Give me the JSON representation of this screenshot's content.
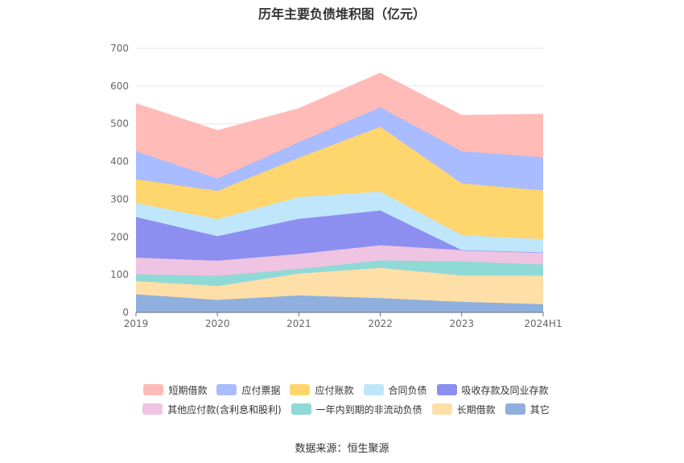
{
  "title": "历年主要负债堆积图（亿元）",
  "source": "数据来源：恒生聚源",
  "chart_data": {
    "type": "area",
    "stacked": true,
    "title": "历年主要负债堆积图（亿元）",
    "x": [
      "2019",
      "2020",
      "2021",
      "2022",
      "2023",
      "2024H1"
    ],
    "ylim": [
      0,
      700
    ],
    "yticks": [
      0,
      100,
      200,
      300,
      400,
      500,
      600,
      700
    ],
    "grid": true,
    "legend_position": "bottom",
    "series": [
      {
        "name": "其它",
        "color": "#8fb0de",
        "values": [
          48,
          33,
          45,
          38,
          28,
          22
        ]
      },
      {
        "name": "长期借款",
        "color": "#ffdfa8",
        "values": [
          35,
          37,
          58,
          80,
          70,
          75
        ]
      },
      {
        "name": "一年内到期的非流动负债",
        "color": "#8fd9d6",
        "values": [
          18,
          27,
          12,
          20,
          37,
          30
        ]
      },
      {
        "name": "其他应付款(含利息和股利)",
        "color": "#efc4e2",
        "values": [
          44,
          40,
          40,
          40,
          30,
          32
        ]
      },
      {
        "name": "吸收存款及同业存款",
        "color": "#8c8ff0",
        "values": [
          108,
          65,
          93,
          92,
          0,
          0
        ]
      },
      {
        "name": "合同负债",
        "color": "#bfe6fb",
        "values": [
          37,
          45,
          58,
          50,
          40,
          35
        ]
      },
      {
        "name": "应付账款",
        "color": "#ffd56e",
        "values": [
          63,
          75,
          104,
          172,
          137,
          129
        ]
      },
      {
        "name": "应付票据",
        "color": "#a9bcff",
        "values": [
          74,
          33,
          41,
          52,
          85,
          88
        ]
      },
      {
        "name": "短期借款",
        "color": "#ffbbb7",
        "values": [
          126,
          127,
          89,
          90,
          95,
          114
        ]
      }
    ],
    "legend_rows": [
      [
        "短期借款",
        "应付票据",
        "应付账款",
        "合同负债",
        "吸收存款及同业存款"
      ],
      [
        "其他应付款(含利息和股利)",
        "一年内到期的非流动负债",
        "长期借款",
        "其它"
      ]
    ]
  }
}
